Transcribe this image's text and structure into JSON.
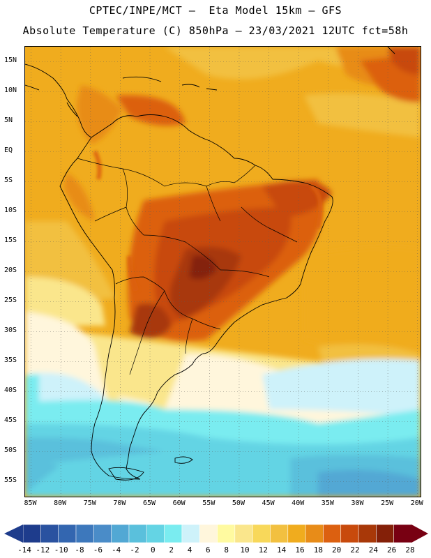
{
  "header": {
    "line1": "CPTEC/INPE/MCT –  Eta Model 15km – GFS",
    "line2": "Absolute Temperature (C) 850hPa – 23/03/2021 12UTC fct=58h"
  },
  "map": {
    "lat_labels": [
      "15N",
      "10N",
      "5N",
      "EQ",
      "5S",
      "10S",
      "15S",
      "20S",
      "25S",
      "30S",
      "35S",
      "40S",
      "45S",
      "50S",
      "55S"
    ],
    "lon_labels": [
      "85W",
      "80W",
      "75W",
      "70W",
      "65W",
      "60W",
      "55W",
      "50W",
      "45W",
      "40W",
      "35W",
      "30W",
      "25W",
      "20W"
    ]
  },
  "colorbar": {
    "labels": [
      "-14",
      "-12",
      "-10",
      "-8",
      "-6",
      "-4",
      "-2",
      "0",
      "2",
      "4",
      "6",
      "8",
      "10",
      "12",
      "14",
      "16",
      "18",
      "20",
      "22",
      "24",
      "26",
      "28"
    ],
    "colors": [
      "#1e3c8c",
      "#2a52a0",
      "#3366b0",
      "#3d78bc",
      "#4a8cc8",
      "#52a8d4",
      "#5ac0dc",
      "#64d4e4",
      "#7aecf0",
      "#cef2fa",
      "#fff6dc",
      "#fffaa0",
      "#fae68c",
      "#f8d85a",
      "#f2c040",
      "#f0ac1e",
      "#e88c18",
      "#dc6010",
      "#c84a0c",
      "#a83808",
      "#842008",
      "#780012"
    ]
  }
}
